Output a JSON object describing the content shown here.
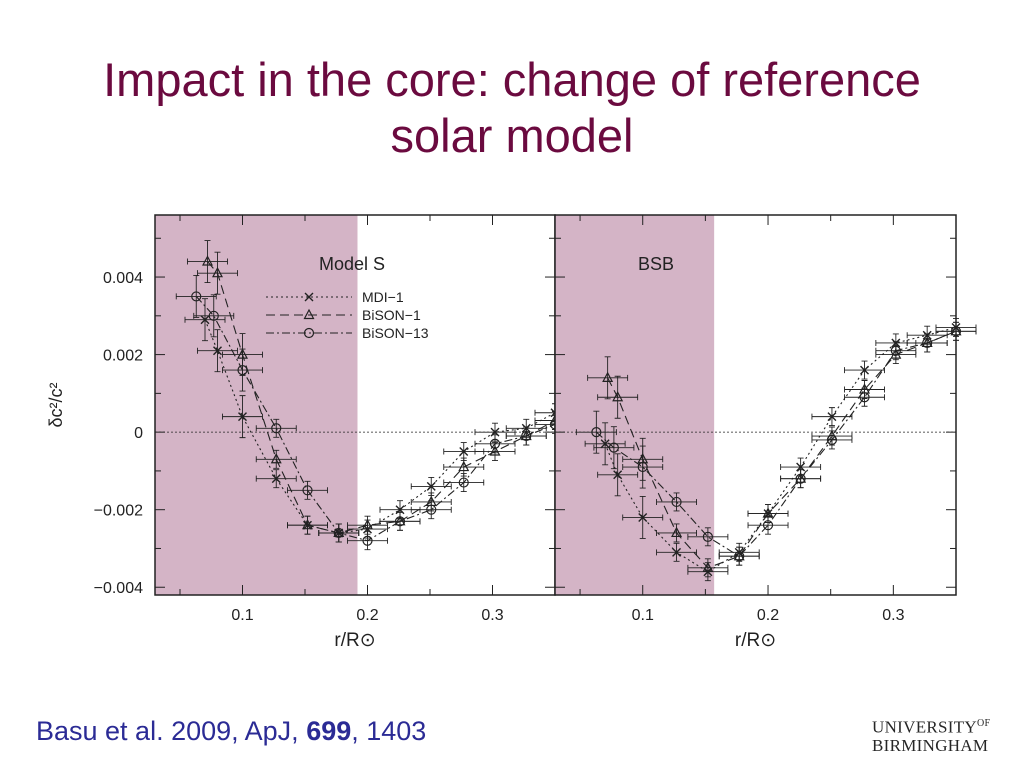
{
  "slide": {
    "title_line1": "Impact in the core: change of reference",
    "title_line2": "solar model",
    "citation_authors": "Basu et al. 2009, ApJ, ",
    "citation_volume": "699",
    "citation_pages": ", 1403",
    "logo_line1": "UNIVERSITY",
    "logo_of": "OF",
    "logo_line2": "BIRMINGHAM"
  },
  "colors": {
    "title": "#6b0a3f",
    "citation": "#2b2b95",
    "shade": "#d4b4c6",
    "ink": "#222222"
  },
  "chart_data": [
    {
      "type": "line",
      "panel_label": "Model S",
      "xlabel": "r/R⊙",
      "ylabel": "δc²/c²",
      "xlim": [
        0.03,
        0.35
      ],
      "ylim": [
        -0.0042,
        0.0056
      ],
      "xticks": [
        "0.1",
        "0.2",
        "0.3"
      ],
      "yticks": [
        "0.004",
        "0.002",
        "0",
        "−0.002",
        "−0.004"
      ],
      "shaded_region": [
        0.03,
        0.192
      ],
      "zero_line": true,
      "legend_position": "top-center",
      "series": [
        {
          "name": "MDI−1",
          "marker": "x",
          "dash": "dotted",
          "x": [
            0.07,
            0.08,
            0.1,
            0.127,
            0.152,
            0.177,
            0.2,
            0.226,
            0.251,
            0.277,
            0.302,
            0.327,
            0.35
          ],
          "y": [
            0.0029,
            0.0021,
            0.0004,
            -0.0012,
            -0.0024,
            -0.0026,
            -0.0025,
            -0.002,
            -0.0014,
            -0.0005,
            0.0,
            0.0001,
            0.0005
          ]
        },
        {
          "name": "BiSON−1",
          "marker": "triangle",
          "dash": "dashed",
          "x": [
            0.072,
            0.08,
            0.1,
            0.127,
            0.152,
            0.177,
            0.2,
            0.226,
            0.251,
            0.277,
            0.302,
            0.327,
            0.35
          ],
          "y": [
            0.0044,
            0.0041,
            0.002,
            -0.0007,
            -0.0024,
            -0.0026,
            -0.0024,
            -0.0023,
            -0.0018,
            -0.0009,
            -0.0005,
            -0.0001,
            0.0003
          ]
        },
        {
          "name": "BiSON−13",
          "marker": "circle",
          "dash": "dash-dot",
          "x": [
            0.063,
            0.077,
            0.1,
            0.127,
            0.152,
            0.177,
            0.2,
            0.226,
            0.251,
            0.277,
            0.302,
            0.327,
            0.35
          ],
          "y": [
            0.0035,
            0.003,
            0.0016,
            0.0001,
            -0.0015,
            -0.0026,
            -0.0028,
            -0.0023,
            -0.002,
            -0.0013,
            -0.0003,
            -0.0001,
            0.0002
          ]
        }
      ]
    },
    {
      "type": "line",
      "panel_label": "BSB",
      "xlabel": "r/R⊙",
      "ylabel": "",
      "xlim": [
        0.03,
        0.35
      ],
      "ylim": [
        -0.0042,
        0.0056
      ],
      "xticks": [
        "0.1",
        "0.2",
        "0.3"
      ],
      "yticks": [],
      "shaded_region": [
        0.03,
        0.157
      ],
      "zero_line": true,
      "series": [
        {
          "name": "MDI−1",
          "marker": "x",
          "dash": "dotted",
          "x": [
            0.07,
            0.08,
            0.1,
            0.127,
            0.152,
            0.177,
            0.2,
            0.226,
            0.251,
            0.277,
            0.302,
            0.327,
            0.35
          ],
          "y": [
            -0.0003,
            -0.0011,
            -0.0022,
            -0.0031,
            -0.0036,
            -0.0031,
            -0.0021,
            -0.0009,
            0.0004,
            0.0016,
            0.0023,
            0.0025,
            0.0027
          ]
        },
        {
          "name": "BiSON−1",
          "marker": "triangle",
          "dash": "dashed",
          "x": [
            0.072,
            0.08,
            0.1,
            0.127,
            0.152,
            0.177,
            0.2,
            0.226,
            0.251,
            0.277,
            0.302,
            0.327,
            0.35
          ],
          "y": [
            0.0014,
            0.0009,
            -0.0007,
            -0.0026,
            -0.0035,
            -0.0032,
            -0.0021,
            -0.0012,
            -0.0001,
            0.0011,
            0.002,
            0.0023,
            0.0026
          ]
        },
        {
          "name": "BiSON−13",
          "marker": "circle",
          "dash": "dash-dot",
          "x": [
            0.063,
            0.077,
            0.1,
            0.127,
            0.152,
            0.177,
            0.2,
            0.226,
            0.251,
            0.277,
            0.302,
            0.327,
            0.35
          ],
          "y": [
            0.0,
            -0.0004,
            -0.0009,
            -0.0018,
            -0.0027,
            -0.0032,
            -0.0024,
            -0.0012,
            -0.0002,
            0.0009,
            0.0021,
            0.0023,
            0.0026
          ]
        }
      ]
    }
  ]
}
